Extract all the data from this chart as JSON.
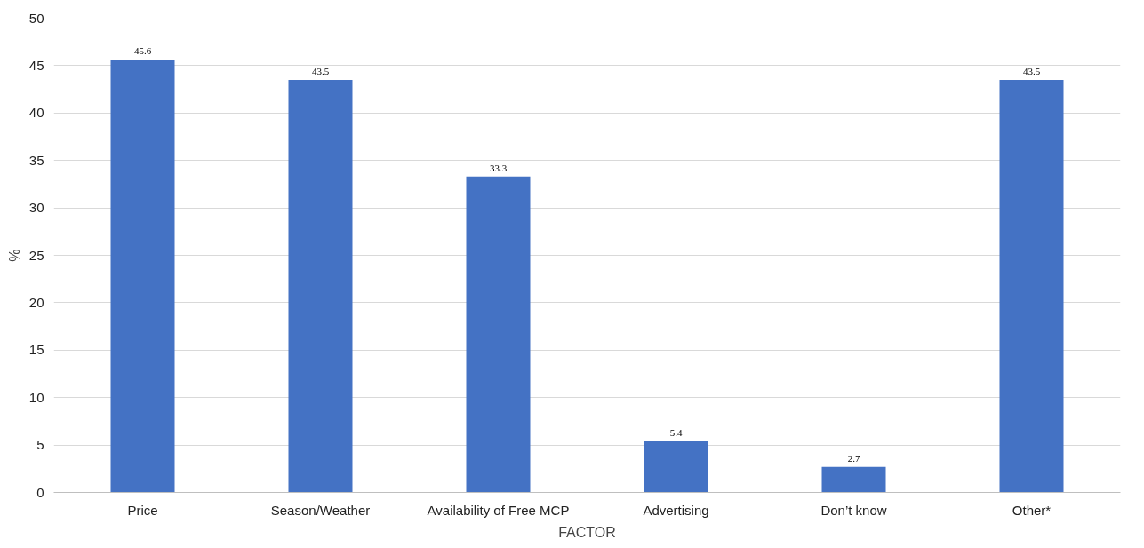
{
  "chart_data": {
    "type": "bar",
    "xlabel": "FACTOR",
    "ylabel": "%",
    "categories": [
      "Price",
      "Season/Weather",
      "Availability of Free MCP",
      "Advertising",
      "Don’t know",
      "Other*"
    ],
    "values": [
      45.6,
      43.5,
      33.3,
      5.4,
      2.7,
      43.5
    ],
    "color": "#4472c4",
    "ylim": [
      0,
      50
    ],
    "yticks": [
      0,
      5,
      10,
      15,
      20,
      25,
      30,
      35,
      40,
      45,
      50
    ],
    "grid": "y",
    "data_labels": true
  }
}
